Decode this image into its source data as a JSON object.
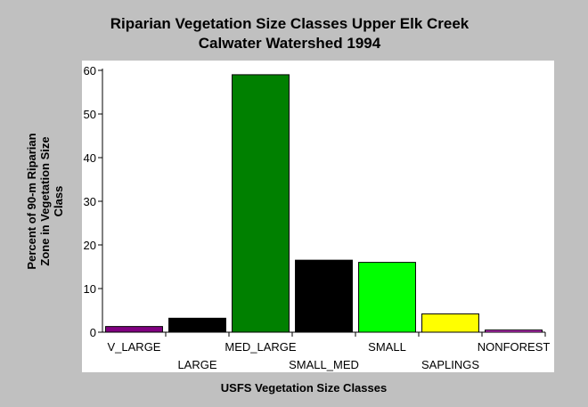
{
  "chart_data": {
    "type": "bar",
    "title": "Riparian Vegetation Size Classes Upper Elk Creek",
    "subtitle": "Calwater Watershed 1994",
    "xlabel": "USFS Vegetation Size Classes",
    "ylabel": [
      "Percent of 90-m Riparian",
      "Zone in Vegetation Size",
      "Class"
    ],
    "ylim": [
      0,
      60
    ],
    "yticks": [
      0,
      10,
      20,
      30,
      40,
      50,
      60
    ],
    "grid": false,
    "categories": [
      "V_LARGE",
      "LARGE",
      "MED_LARGE",
      "SMALL_MED",
      "SMALL",
      "SAPLINGS",
      "NONFOREST"
    ],
    "values": [
      1.3,
      3.2,
      59.0,
      16.5,
      16.0,
      4.2,
      0.5
    ],
    "colors": [
      "#800080",
      "#1a4d1a",
      "#008000",
      "#2f9a2f",
      "#00ff00",
      "#ffff00",
      "#cc33cc"
    ],
    "patterns": [
      "solid",
      "hatched",
      "solid",
      "hatched",
      "solid",
      "solid",
      "solid"
    ]
  }
}
